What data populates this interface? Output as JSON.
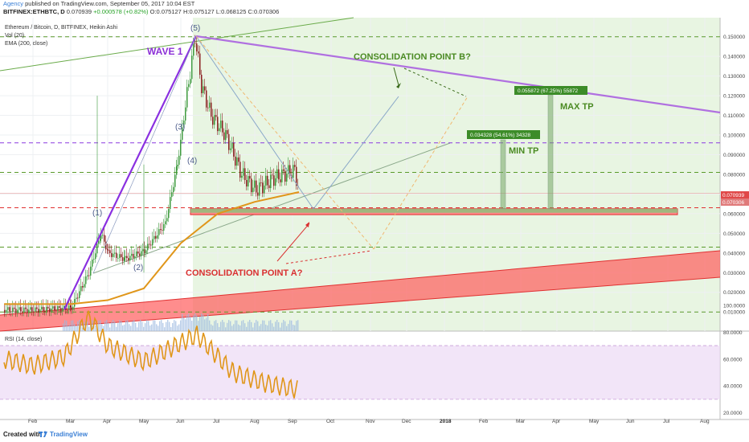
{
  "header": {
    "agency": "Agency",
    "published": "published on TradingView.com, September 05, 2017 10:04 EST",
    "symbol": "BITFINEX:ETHBTC, D",
    "ohlc": "0.070939",
    "change": "+0.000578 (+0.82%)",
    "o": "O:0.075127",
    "h": "H:0.075127",
    "l": "L:0.068125",
    "c": "C:0.070306"
  },
  "legend": {
    "title": "Ethereum / Bitcoin, D, BITFINEX, Heikin Ashi",
    "vol": "Vol (20)",
    "ema": "EMA (200, close)"
  },
  "rsi_label": "RSI (14, close)",
  "price_badges": {
    "last": "0.070939",
    "close": "0.070306"
  },
  "annotations": {
    "wave1": "WAVE 1",
    "consolidation_b": "CONSOLIDATION POINT B?",
    "consolidation_a": "CONSOLIDATION POINT A?",
    "max_tp": "MAX TP",
    "min_tp": "MIN TP",
    "max_tp_box": "0.055872 (67.25%) 55872",
    "min_tp_box": "0.034328 (54.61%) 34328",
    "w1": "(1)",
    "w2": "(2)",
    "w3": "(3)",
    "w4": "(4)",
    "w5": "(5)"
  },
  "footer": {
    "created": "Created with",
    "tv": "TradingView"
  },
  "chart_data": [
    {
      "type": "line",
      "chart_kind": "candlestick (Heikin Ashi) price chart",
      "title": "Ethereum / Bitcoin, D, BITFINEX, Heikin Ashi",
      "x_ticks": [
        "Feb",
        "Mar",
        "Apr",
        "May",
        "Jun",
        "Jul",
        "Aug",
        "Sep",
        "Oct",
        "Nov",
        "Dec",
        "2018",
        "Feb",
        "Mar",
        "Apr",
        "May",
        "Jun",
        "Jul",
        "Aug"
      ],
      "y_ticks": [
        "0.010000",
        "0.020000",
        "0.030000",
        "0.040000",
        "0.050000",
        "0.060000",
        "0.070000",
        "0.080000",
        "0.090000",
        "0.100000",
        "0.110000",
        "0.120000",
        "0.130000",
        "0.140000",
        "0.150000"
      ],
      "ylim": [
        0.003,
        0.156
      ],
      "series": [
        {
          "name": "Ethereum / Bitcoin",
          "x": [
            "Jan",
            "Feb",
            "Mar 1",
            "Mar 15",
            "Mar 25",
            "Apr 1",
            "Apr 15",
            "May 1",
            "May 15",
            "May 25",
            "Jun 5",
            "Jun 12",
            "Jun 20",
            "Jul 1",
            "Jul 15",
            "Aug 1",
            "Aug 15",
            "Sep 1",
            "Sep 5"
          ],
          "values": [
            0.011,
            0.011,
            0.012,
            0.03,
            0.05,
            0.04,
            0.037,
            0.041,
            0.055,
            0.085,
            0.15,
            0.125,
            0.11,
            0.1,
            0.08,
            0.072,
            0.078,
            0.082,
            0.0703
          ]
        },
        {
          "name": "EMA (200, close)",
          "x": [
            "Jan",
            "Mar 1",
            "Apr 1",
            "May 1",
            "Jun 1",
            "Jul 1",
            "Aug 1",
            "Sep 5"
          ],
          "values": [
            0.014,
            0.014,
            0.016,
            0.022,
            0.045,
            0.06,
            0.066,
            0.071
          ]
        }
      ],
      "levels": [
        0.15,
        0.096,
        0.081,
        0.063,
        0.043,
        0.01
      ],
      "support_zone": [
        0.0595,
        0.0625
      ]
    },
    {
      "type": "line",
      "title": "RSI (14, close)",
      "y_ticks": [
        "20.0000",
        "40.0000",
        "60.0000",
        "80.0000",
        "100.0000"
      ],
      "ylim": [
        10,
        102
      ],
      "series": [
        {
          "name": "RSI (14, close)",
          "x": [
            "Jan",
            "Feb",
            "Mar",
            "Mar 20",
            "Apr",
            "May",
            "Jun",
            "Jul",
            "Aug",
            "Sep 5"
          ],
          "values": [
            60,
            55,
            62,
            92,
            70,
            58,
            78,
            50,
            42,
            37
          ]
        }
      ]
    }
  ]
}
